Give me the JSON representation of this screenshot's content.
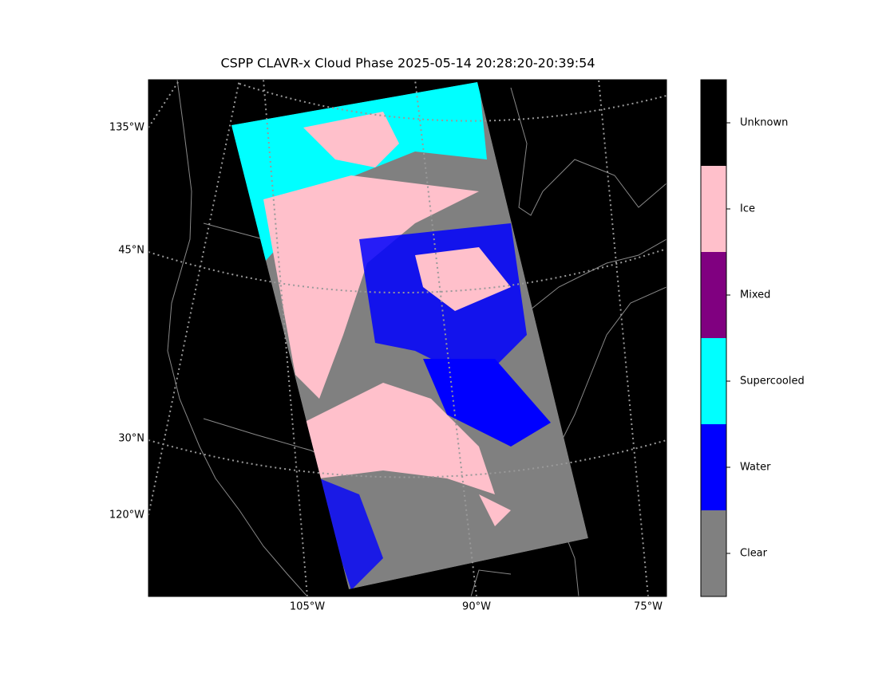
{
  "title": "CSPP CLAVR-x Cloud Phase 2025-05-14 20:28:20-20:39:54",
  "map": {
    "left_labels": [
      "135°W",
      "45°N",
      "30°N",
      "120°W"
    ],
    "bottom_labels": [
      "105°W",
      "90°W",
      "75°W"
    ]
  },
  "colorbar": {
    "classes": [
      {
        "name": "Clear",
        "color": "#808080"
      },
      {
        "name": "Water",
        "color": "#0000ff"
      },
      {
        "name": "Supercooled",
        "color": "#00ffff"
      },
      {
        "name": "Mixed",
        "color": "#800080"
      },
      {
        "name": "Ice",
        "color": "#ffc0cb"
      },
      {
        "name": "Unknown",
        "color": "#000000"
      }
    ]
  }
}
